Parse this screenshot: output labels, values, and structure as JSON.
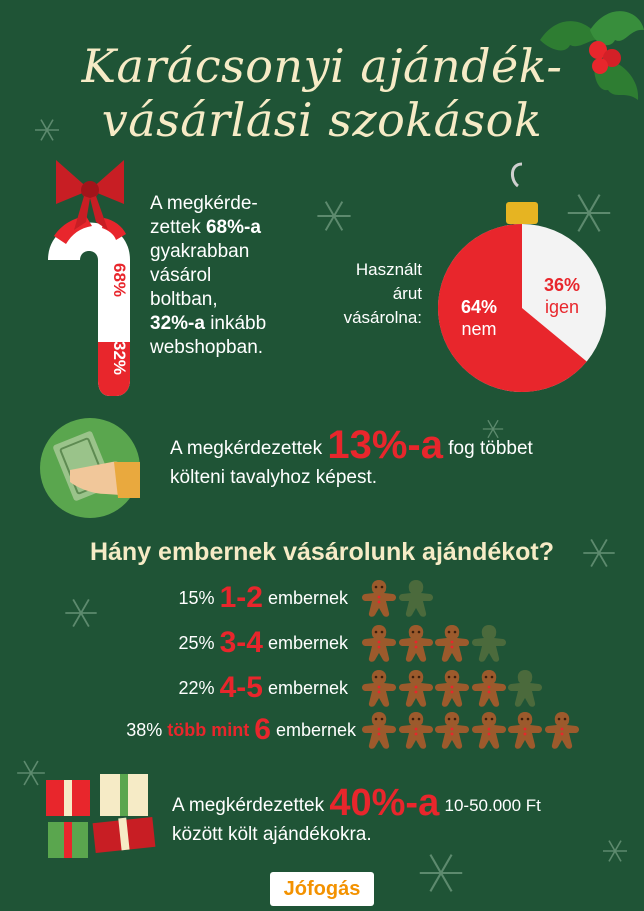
{
  "title": {
    "line1": "Karácsonyi ajándék-",
    "line2": "vásárlási szokások"
  },
  "colors": {
    "background": "#1f5436",
    "accent_red": "#e8262c",
    "cream": "#f6ebc6",
    "white": "#ffffff",
    "gingerbread": "#9c5a2c",
    "gingerbread_muted": "#4b6a3c"
  },
  "shopping": {
    "line1": "A megkérde-",
    "line2": "zettek",
    "pct1": "68%-a",
    "line3": "gyakrabban",
    "line4": "vásárol",
    "line5": "boltban,",
    "pct2": "32%-a",
    "line6_rest": "inkább",
    "line7": "webshopban.",
    "cane_label_top": "68%",
    "cane_label_bottom": "32%",
    "shares": [
      0.68,
      0.32
    ]
  },
  "used": {
    "line1": "Használt",
    "line2": "árut",
    "line3": "vásárolna:",
    "no_pct": "64%",
    "no_label": "nem",
    "yes_pct": "36%",
    "yes_label": "igen",
    "no_value": 64,
    "yes_value": 36
  },
  "spend_more": {
    "prefix": "A megkérdezettek",
    "pct": "13%-a",
    "suffix": "fog többet",
    "line2": "költeni tavalyhoz képest."
  },
  "people_heading": "Hány embernek vásárolunk ajándékot?",
  "people_rows": [
    {
      "pct": "15%",
      "highlight": "1-2",
      "label": "embernek",
      "total": 2,
      "filled": 1
    },
    {
      "pct": "25%",
      "highlight": "3-4",
      "label": "embernek",
      "total": 4,
      "filled": 3
    },
    {
      "pct": "22%",
      "highlight": "4-5",
      "label": "embernek",
      "total": 5,
      "filled": 4
    },
    {
      "pct": "38%",
      "highlight_small": "több mint",
      "highlight": "6",
      "label": "embernek",
      "total": 6,
      "filled": 6
    }
  ],
  "budget": {
    "prefix": "A megkérdezettek",
    "pct": "40%-a",
    "amount": "10-50.000 Ft",
    "line2": "között költ ajándékokra."
  },
  "brand": {
    "logo": "Jófogás"
  }
}
